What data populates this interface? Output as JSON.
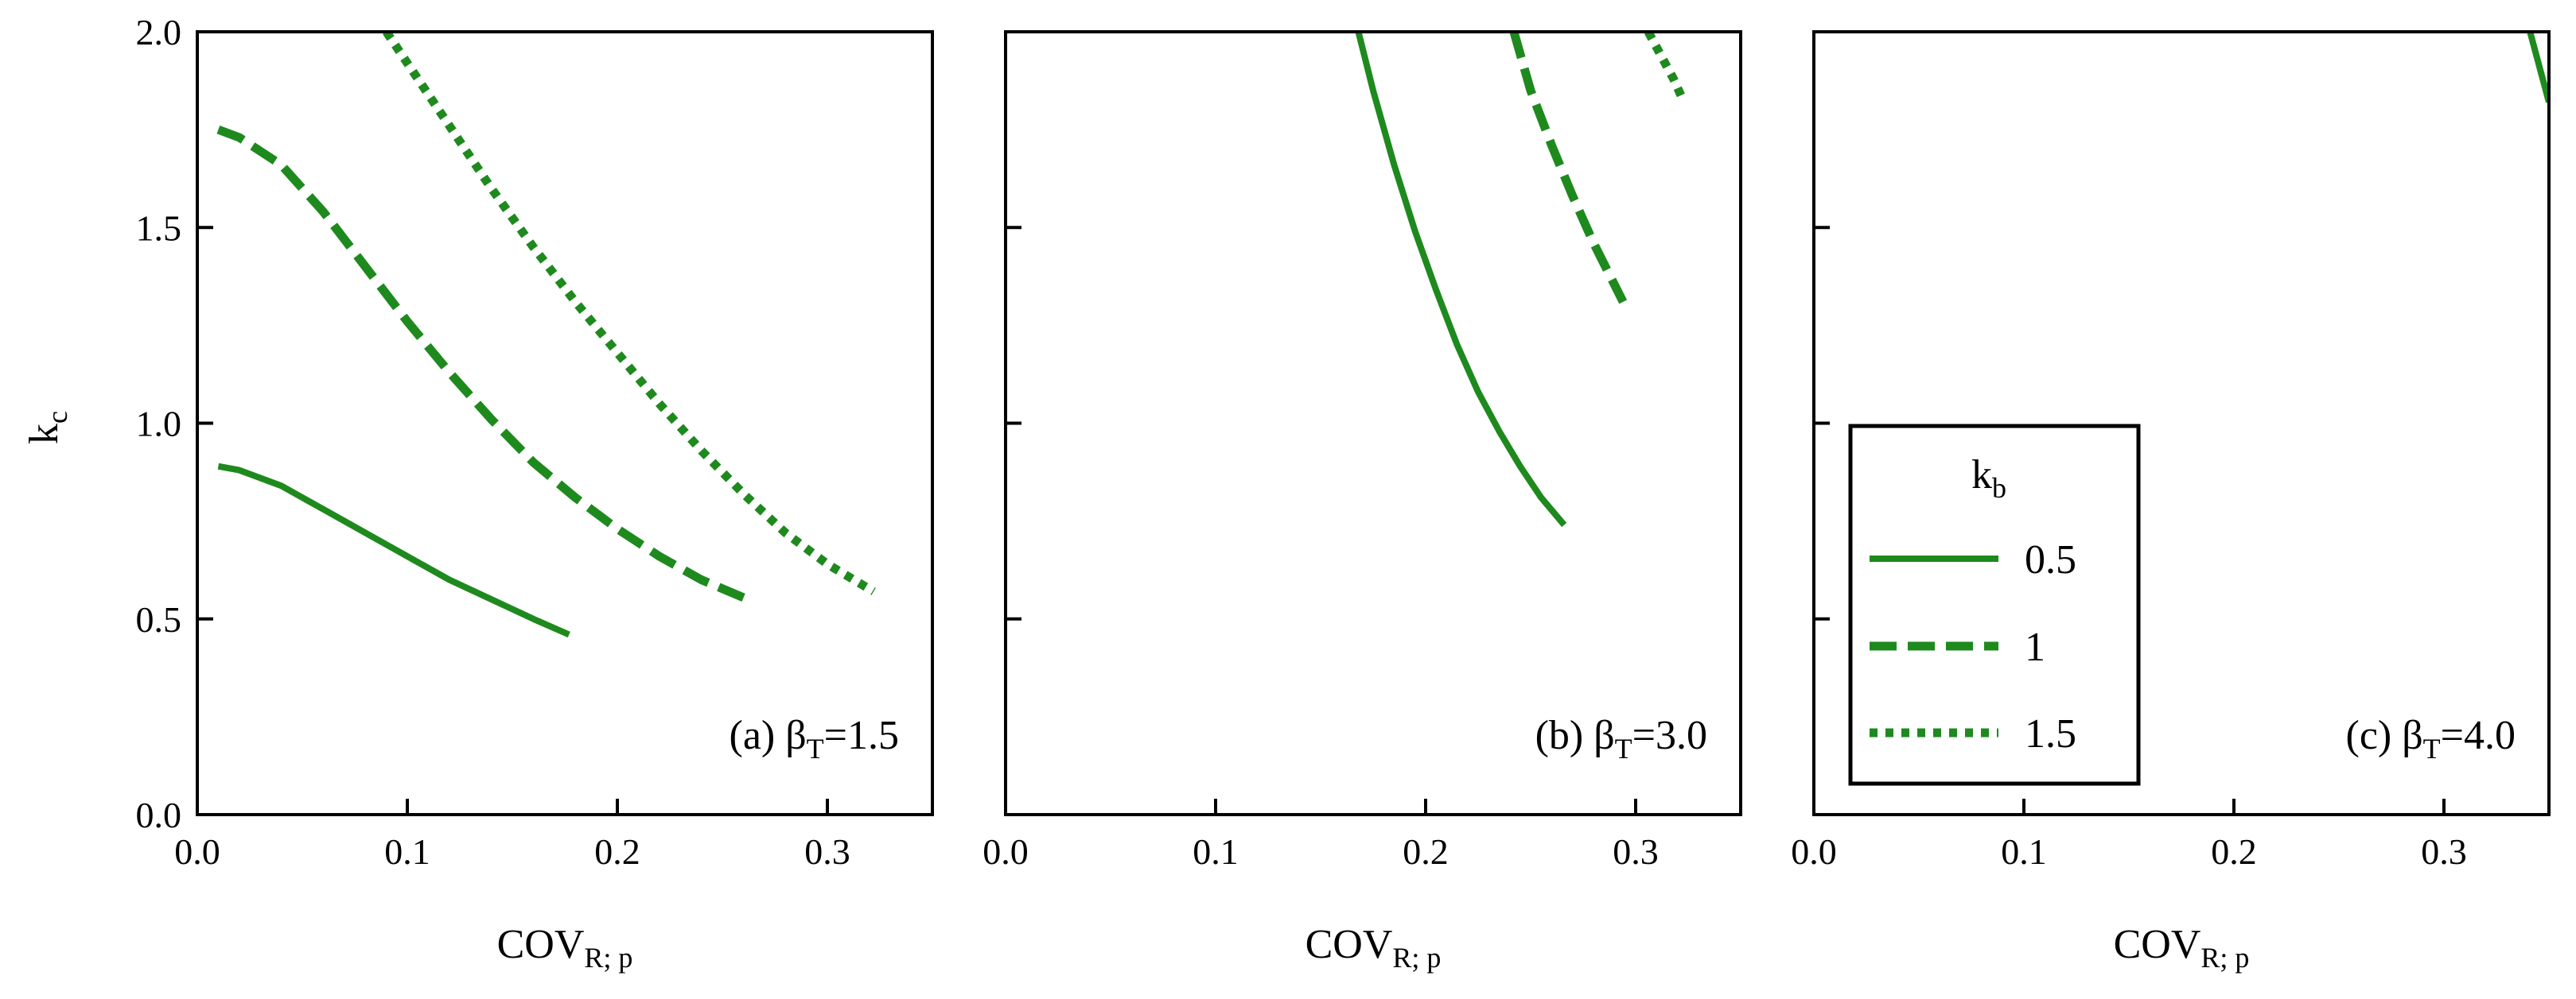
{
  "colors": {
    "series": "#1e8a1e",
    "axis": "#000000"
  },
  "legend": {
    "title": "k",
    "title_sub": "b",
    "location": "panel-c-center-left"
  },
  "chart_data": [
    {
      "type": "line",
      "panel": "a",
      "annotation": {
        "prefix": "(a) β",
        "sub": "T",
        "suffix": "=1.5"
      },
      "xlabel": "COV",
      "xlabel_sub": "R; p",
      "ylabel": "k",
      "ylabel_sub": "c",
      "xlim": [
        0,
        0.35
      ],
      "ylim": [
        0,
        2.0
      ],
      "xticks": [
        "0.0",
        "0.1",
        "0.2",
        "0.3"
      ],
      "yticks": [
        "0.0",
        "0.5",
        "1.0",
        "1.5",
        "2.0"
      ],
      "series": [
        {
          "name": "0.5",
          "style": "solid",
          "x": [
            0.01,
            0.02,
            0.04,
            0.06,
            0.08,
            0.1,
            0.12,
            0.14,
            0.16,
            0.177
          ],
          "y": [
            0.89,
            0.88,
            0.84,
            0.78,
            0.72,
            0.66,
            0.6,
            0.55,
            0.5,
            0.46
          ]
        },
        {
          "name": "1",
          "style": "dashed",
          "x": [
            0.01,
            0.02,
            0.04,
            0.06,
            0.08,
            0.1,
            0.12,
            0.14,
            0.16,
            0.18,
            0.2,
            0.22,
            0.24,
            0.262
          ],
          "y": [
            1.75,
            1.73,
            1.66,
            1.54,
            1.4,
            1.26,
            1.13,
            1.01,
            0.9,
            0.81,
            0.73,
            0.66,
            0.6,
            0.55
          ]
        },
        {
          "name": "1.5",
          "style": "dotted",
          "x": [
            0.09,
            0.1,
            0.12,
            0.14,
            0.16,
            0.18,
            0.2,
            0.22,
            0.24,
            0.26,
            0.28,
            0.3,
            0.322
          ],
          "y": [
            2.0,
            1.92,
            1.76,
            1.6,
            1.45,
            1.31,
            1.18,
            1.05,
            0.93,
            0.82,
            0.72,
            0.64,
            0.57
          ]
        }
      ]
    },
    {
      "type": "line",
      "panel": "b",
      "annotation": {
        "prefix": "(b) β",
        "sub": "T",
        "suffix": "=3.0"
      },
      "xlabel": "COV",
      "xlabel_sub": "R; p",
      "xlim": [
        0,
        0.35
      ],
      "ylim": [
        0,
        2.0
      ],
      "xticks": [
        "0.0",
        "0.1",
        "0.2",
        "0.3"
      ],
      "series": [
        {
          "name": "0.5",
          "style": "solid",
          "x": [
            0.168,
            0.175,
            0.185,
            0.195,
            0.205,
            0.215,
            0.225,
            0.235,
            0.245,
            0.255,
            0.266
          ],
          "y": [
            2.0,
            1.85,
            1.66,
            1.49,
            1.34,
            1.2,
            1.08,
            0.98,
            0.89,
            0.81,
            0.74
          ]
        },
        {
          "name": "1",
          "style": "dashed",
          "x": [
            0.242,
            0.25,
            0.26,
            0.27,
            0.28,
            0.294
          ],
          "y": [
            2.0,
            1.85,
            1.71,
            1.58,
            1.46,
            1.31
          ]
        },
        {
          "name": "1.5",
          "style": "dotted",
          "x": [
            0.306,
            0.312,
            0.318,
            0.323
          ],
          "y": [
            2.0,
            1.94,
            1.88,
            1.82
          ]
        }
      ]
    },
    {
      "type": "line",
      "panel": "c",
      "annotation": {
        "prefix": "(c) β",
        "sub": "T",
        "suffix": "=4.0"
      },
      "xlabel": "COV",
      "xlabel_sub": "R; p",
      "xlim": [
        0,
        0.35
      ],
      "ylim": [
        0,
        2.0
      ],
      "xticks": [
        "0.0",
        "0.1",
        "0.2",
        "0.3"
      ],
      "series": [
        {
          "name": "0.5",
          "style": "solid",
          "x": [
            0.341,
            0.345,
            0.35
          ],
          "y": [
            2.0,
            1.92,
            1.82
          ]
        }
      ]
    }
  ]
}
